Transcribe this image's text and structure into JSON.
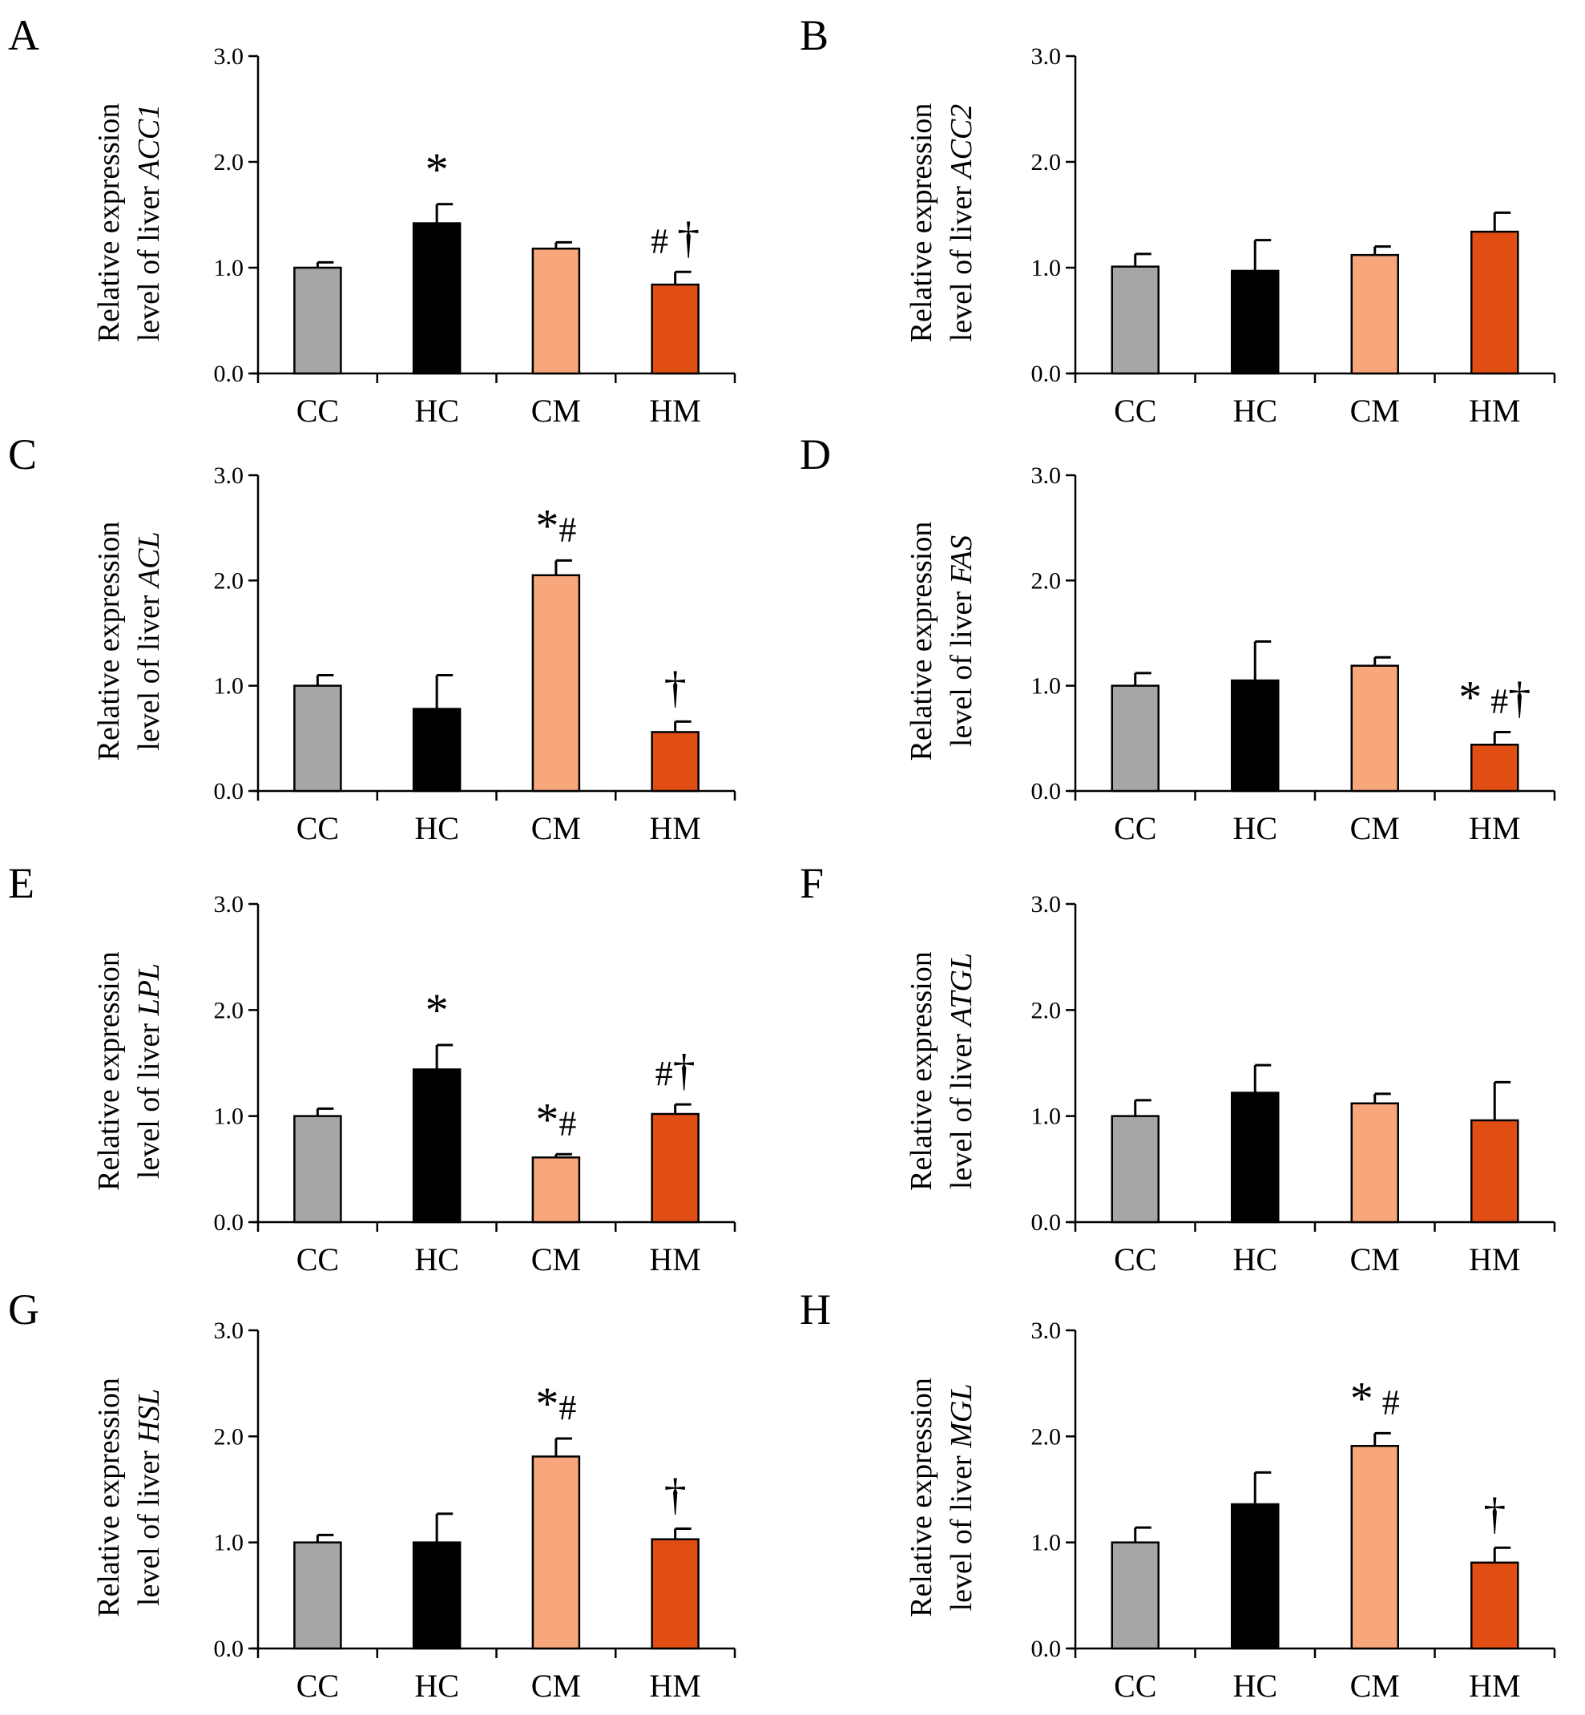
{
  "chart_data": [
    {
      "panel": "A",
      "type": "bar",
      "ylabel": [
        "Relative expression",
        "level of liver ",
        "ACC1"
      ],
      "categories": [
        "CC",
        "HC",
        "CM",
        "HM"
      ],
      "values": [
        1.0,
        1.42,
        1.18,
        0.84
      ],
      "errors": [
        0.05,
        0.18,
        0.06,
        0.12
      ],
      "significance": [
        "",
        "*",
        "",
        "# †"
      ],
      "yticks": [
        "0.0",
        "1.0",
        "2.0",
        "3.0"
      ],
      "ylim": [
        0,
        3
      ],
      "colors": [
        "#a6a6a6",
        "#000000",
        "#f8a67c",
        "#e04e14"
      ]
    },
    {
      "panel": "B",
      "type": "bar",
      "ylabel": [
        "Relative expression",
        "level of liver ",
        "ACC2"
      ],
      "categories": [
        "CC",
        "HC",
        "CM",
        "HM"
      ],
      "values": [
        1.01,
        0.97,
        1.12,
        1.34
      ],
      "errors": [
        0.12,
        0.29,
        0.08,
        0.18
      ],
      "significance": [
        "",
        "",
        "",
        ""
      ],
      "yticks": [
        "0.0",
        "1.0",
        "2.0",
        "3.0"
      ],
      "ylim": [
        0,
        3
      ],
      "colors": [
        "#a6a6a6",
        "#000000",
        "#f8a67c",
        "#e04e14"
      ]
    },
    {
      "panel": "C",
      "type": "bar",
      "ylabel": [
        "Relative expression",
        "level of liver ",
        "ACL"
      ],
      "categories": [
        "CC",
        "HC",
        "CM",
        "HM"
      ],
      "values": [
        1.0,
        0.78,
        2.05,
        0.56
      ],
      "errors": [
        0.1,
        0.32,
        0.14,
        0.1
      ],
      "significance": [
        "",
        "",
        "*#",
        "†"
      ],
      "yticks": [
        "0.0",
        "1.0",
        "2.0",
        "3.0"
      ],
      "ylim": [
        0,
        3
      ],
      "colors": [
        "#a6a6a6",
        "#000000",
        "#f8a67c",
        "#e04e14"
      ]
    },
    {
      "panel": "D",
      "type": "bar",
      "ylabel": [
        "Relative expression",
        "level of liver ",
        "FAS"
      ],
      "categories": [
        "CC",
        "HC",
        "CM",
        "HM"
      ],
      "values": [
        1.0,
        1.05,
        1.19,
        0.44
      ],
      "errors": [
        0.12,
        0.37,
        0.08,
        0.12
      ],
      "significance": [
        "",
        "",
        "",
        "* #†"
      ],
      "yticks": [
        "0.0",
        "1.0",
        "2.0",
        "3.0"
      ],
      "ylim": [
        0,
        3
      ],
      "colors": [
        "#a6a6a6",
        "#000000",
        "#f8a67c",
        "#e04e14"
      ]
    },
    {
      "panel": "E",
      "type": "bar",
      "ylabel": [
        "Relative expression",
        "level of liver ",
        "LPL"
      ],
      "categories": [
        "CC",
        "HC",
        "CM",
        "HM"
      ],
      "values": [
        1.0,
        1.44,
        0.61,
        1.02
      ],
      "errors": [
        0.07,
        0.23,
        0.03,
        0.09
      ],
      "significance": [
        "",
        "*",
        "*#",
        "#†"
      ],
      "yticks": [
        "0.0",
        "1.0",
        "2.0",
        "3.0"
      ],
      "ylim": [
        0,
        3
      ],
      "colors": [
        "#a6a6a6",
        "#000000",
        "#f8a67c",
        "#e04e14"
      ]
    },
    {
      "panel": "F",
      "type": "bar",
      "ylabel": [
        "Relative expression",
        "level of liver ",
        "ATGL"
      ],
      "categories": [
        "CC",
        "HC",
        "CM",
        "HM"
      ],
      "values": [
        1.0,
        1.22,
        1.12,
        0.96
      ],
      "errors": [
        0.15,
        0.26,
        0.09,
        0.36
      ],
      "significance": [
        "",
        "",
        "",
        ""
      ],
      "yticks": [
        "0.0",
        "1.0",
        "2.0",
        "3.0"
      ],
      "ylim": [
        0,
        3
      ],
      "colors": [
        "#a6a6a6",
        "#000000",
        "#f8a67c",
        "#e04e14"
      ]
    },
    {
      "panel": "G",
      "type": "bar",
      "ylabel": [
        "Relative expression",
        "level of liver ",
        "HSL"
      ],
      "categories": [
        "CC",
        "HC",
        "CM",
        "HM"
      ],
      "values": [
        1.0,
        1.0,
        1.81,
        1.03
      ],
      "errors": [
        0.07,
        0.27,
        0.17,
        0.1
      ],
      "significance": [
        "",
        "",
        "*#",
        "†"
      ],
      "yticks": [
        "0.0",
        "1.0",
        "2.0",
        "3.0"
      ],
      "ylim": [
        0,
        3
      ],
      "colors": [
        "#a6a6a6",
        "#000000",
        "#f8a67c",
        "#e04e14"
      ]
    },
    {
      "panel": "H",
      "type": "bar",
      "ylabel": [
        "Relative expression",
        "level of liver ",
        "MGL"
      ],
      "categories": [
        "CC",
        "HC",
        "CM",
        "HM"
      ],
      "values": [
        1.0,
        1.36,
        1.91,
        0.81
      ],
      "errors": [
        0.14,
        0.3,
        0.12,
        0.14
      ],
      "significance": [
        "",
        "",
        "* #",
        "†"
      ],
      "yticks": [
        "0.0",
        "1.0",
        "2.0",
        "3.0"
      ],
      "ylim": [
        0,
        3
      ],
      "colors": [
        "#a6a6a6",
        "#000000",
        "#f8a67c",
        "#e04e14"
      ]
    }
  ]
}
